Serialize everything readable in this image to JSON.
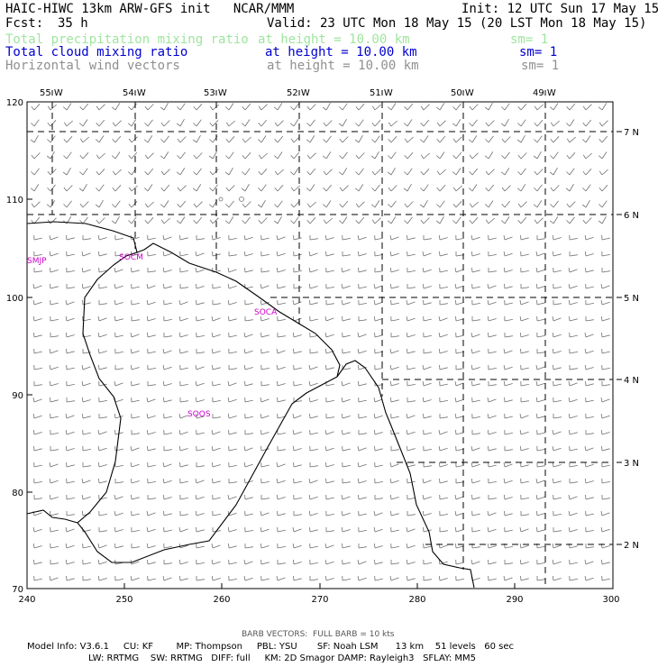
{
  "header": {
    "model_line": "HAIC-HIWC 13km ARW-GFS init   NCAR/MMM",
    "init_line": "Init: 12 UTC Sun 17 May 15",
    "fcst_label": "Fcst:",
    "fcst_value": "35 h",
    "valid_line": "Valid: 23 UTC Mon 18 May 15 (20 LST Mon 18 May 15)"
  },
  "fields": [
    {
      "name": "Total precipitation mixing ratio",
      "height": "at height = 10.00 km",
      "smooth": "sm= 1",
      "color": "#9ee59e"
    },
    {
      "name": "Total cloud mixing ratio",
      "height": "at height = 10.00 km",
      "smooth": "sm= 1",
      "color": "#0000d0"
    },
    {
      "name": "Horizontal wind vectors",
      "height": "at height = 10.00 km",
      "smooth": "sm= 1",
      "color": "#909090"
    }
  ],
  "map": {
    "x_axis_ticks": [
      "240",
      "250",
      "260",
      "270",
      "280",
      "290",
      "300"
    ],
    "y_axis_ticks": [
      "70",
      "80",
      "90",
      "100",
      "110",
      "120"
    ],
    "longitude_labels": [
      "55 W",
      "54 W",
      "53 W",
      "52 W",
      "51 W",
      "50 W",
      "49 W"
    ],
    "latitude_labels": [
      "7 N",
      "6 N",
      "5 N",
      "4 N",
      "3 N",
      "2 N"
    ],
    "stations": [
      "SMJP",
      "SOCM",
      "SOCA",
      "SOOS"
    ],
    "station_color": "#cc00cc",
    "barb_color": "#707070"
  },
  "footer": {
    "barb_note": "BARB VECTORS:  FULL BARB = 10 kts",
    "model_info_1": "Model Info: V3.6.1     CU: KF        MP: Thompson     PBL: YSU       SF: Noah LSM      13 km    51 levels   60 sec",
    "model_info_2": "LW: RRTMG    SW: RRTMG   DIFF: full     KM: 2D Smagor DAMP: Rayleigh3   SFLAY: MM5"
  }
}
